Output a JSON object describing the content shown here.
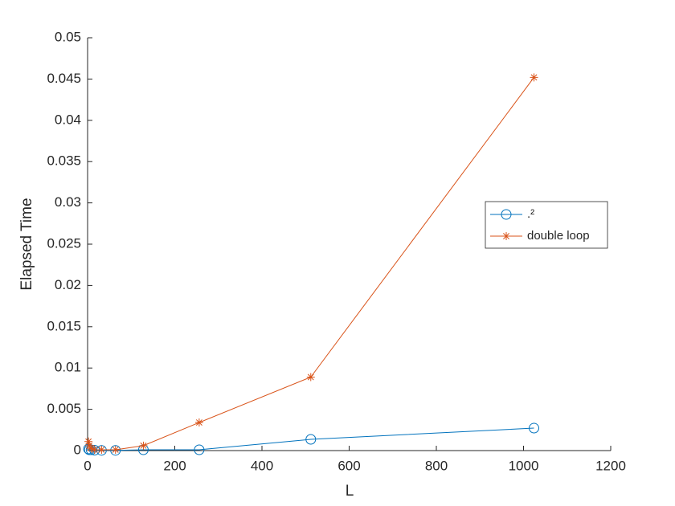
{
  "chart_data": {
    "type": "line",
    "xlabel": "L",
    "ylabel": "Elapsed Time",
    "x": [
      2,
      4,
      8,
      16,
      32,
      64,
      128,
      256,
      512,
      1024
    ],
    "series": [
      {
        "name": ".²",
        "color": "#0072BD",
        "marker": "circle",
        "values": [
          0.0002,
          0.0001,
          0.0001,
          5e-05,
          3e-05,
          3e-05,
          0.0001,
          0.0001,
          0.00136,
          0.00272
        ]
      },
      {
        "name": "double loop",
        "color": "#D95319",
        "marker": "asterisk",
        "values": [
          0.0011,
          0.0006,
          0.0003,
          0.0001,
          0.0001,
          0.0001,
          0.0006,
          0.0034,
          0.0089,
          0.0452
        ]
      }
    ],
    "xlim": [
      0,
      1200
    ],
    "xticks": [
      0,
      200,
      400,
      600,
      800,
      1000,
      1200
    ],
    "ylim": [
      0,
      0.05
    ],
    "yticks": [
      0,
      0.005,
      0.01,
      0.015,
      0.02,
      0.025,
      0.03,
      0.035,
      0.04,
      0.045,
      0.05
    ],
    "legend": "east"
  }
}
